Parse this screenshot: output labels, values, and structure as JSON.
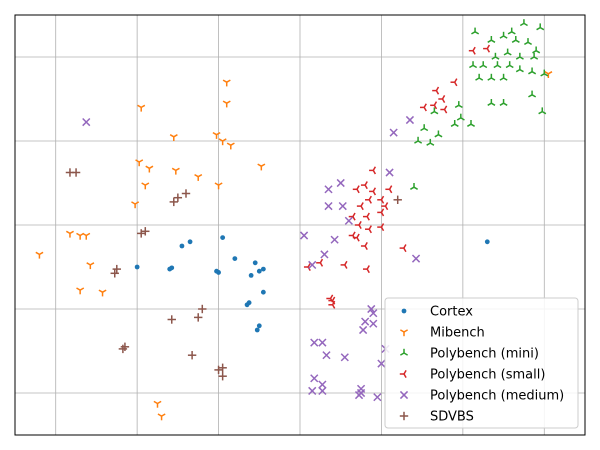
{
  "chart_data": {
    "type": "scatter",
    "title": "",
    "xlabel": "",
    "ylabel": "",
    "xlim": [
      0,
      14
    ],
    "ylim": [
      0,
      10
    ],
    "grid": true,
    "tick_labels_visible": false,
    "legend_position": "lower-right",
    "series": [
      {
        "name": "Cortex",
        "marker": "point",
        "color": "#1f77b4",
        "points": [
          [
            5.1,
            4.7
          ],
          [
            4.3,
            4.6
          ],
          [
            4.1,
            4.5
          ],
          [
            5.4,
            4.2
          ],
          [
            5.9,
            4.1
          ],
          [
            5.8,
            3.8
          ],
          [
            6.0,
            3.9
          ],
          [
            6.1,
            3.95
          ],
          [
            3.0,
            4.0
          ],
          [
            3.8,
            3.95
          ],
          [
            3.85,
            3.98
          ],
          [
            4.95,
            3.9
          ],
          [
            5.0,
            3.87
          ],
          [
            6.1,
            3.4
          ],
          [
            5.7,
            3.1
          ],
          [
            5.75,
            3.15
          ],
          [
            5.95,
            2.5
          ],
          [
            6.0,
            2.6
          ],
          [
            11.6,
            4.6
          ]
        ]
      },
      {
        "name": "Mibench",
        "marker": "tri_down",
        "color": "#ff7f0e",
        "points": [
          [
            5.2,
            8.4
          ],
          [
            5.2,
            7.9
          ],
          [
            3.1,
            7.8
          ],
          [
            3.9,
            7.1
          ],
          [
            4.95,
            7.15
          ],
          [
            5.1,
            7.0
          ],
          [
            5.3,
            6.9
          ],
          [
            3.05,
            6.5
          ],
          [
            3.3,
            6.35
          ],
          [
            3.95,
            6.3
          ],
          [
            4.5,
            6.15
          ],
          [
            6.05,
            6.4
          ],
          [
            3.2,
            5.95
          ],
          [
            5.0,
            5.95
          ],
          [
            2.95,
            5.5
          ],
          [
            1.35,
            4.8
          ],
          [
            1.6,
            4.75
          ],
          [
            1.75,
            4.75
          ],
          [
            0.6,
            4.3
          ],
          [
            1.85,
            4.05
          ],
          [
            1.6,
            3.45
          ],
          [
            2.15,
            3.4
          ],
          [
            3.5,
            0.75
          ],
          [
            3.6,
            0.45
          ],
          [
            13.1,
            8.6
          ]
        ]
      },
      {
        "name": "Polybench (mini)",
        "marker": "tri_up",
        "color": "#2ca02c",
        "points": [
          [
            11.3,
            9.6
          ],
          [
            11.7,
            9.4
          ],
          [
            12.0,
            9.5
          ],
          [
            12.2,
            9.6
          ],
          [
            12.5,
            9.8
          ],
          [
            12.9,
            9.7
          ],
          [
            12.3,
            9.4
          ],
          [
            12.6,
            9.35
          ],
          [
            12.8,
            9.15
          ],
          [
            12.1,
            9.1
          ],
          [
            11.8,
            9.0
          ],
          [
            12.4,
            9.0
          ],
          [
            12.75,
            9.0
          ],
          [
            11.25,
            8.8
          ],
          [
            11.5,
            8.8
          ],
          [
            11.85,
            8.8
          ],
          [
            12.15,
            8.8
          ],
          [
            12.4,
            8.7
          ],
          [
            12.7,
            8.65
          ],
          [
            13.0,
            8.6
          ],
          [
            11.4,
            8.5
          ],
          [
            11.7,
            8.5
          ],
          [
            12.0,
            8.5
          ],
          [
            11.7,
            7.9
          ],
          [
            12.0,
            7.9
          ],
          [
            10.9,
            7.85
          ],
          [
            10.3,
            7.7
          ],
          [
            10.95,
            7.55
          ],
          [
            11.2,
            7.4
          ],
          [
            10.8,
            7.4
          ],
          [
            10.05,
            7.3
          ],
          [
            10.4,
            7.15
          ],
          [
            9.9,
            7.0
          ],
          [
            10.2,
            6.95
          ],
          [
            9.8,
            5.9
          ],
          [
            12.7,
            8.1
          ],
          [
            12.95,
            7.7
          ]
        ]
      },
      {
        "name": "Polybench (small)",
        "marker": "tri_left",
        "color": "#d62728",
        "points": [
          [
            11.25,
            9.15
          ],
          [
            11.6,
            9.2
          ],
          [
            10.8,
            8.4
          ],
          [
            10.35,
            8.2
          ],
          [
            10.5,
            8.0
          ],
          [
            10.05,
            7.8
          ],
          [
            10.3,
            7.85
          ],
          [
            10.55,
            7.75
          ],
          [
            8.8,
            6.3
          ],
          [
            8.6,
            5.95
          ],
          [
            8.4,
            5.85
          ],
          [
            8.8,
            5.8
          ],
          [
            9.2,
            5.85
          ],
          [
            8.7,
            5.6
          ],
          [
            9.0,
            5.6
          ],
          [
            8.5,
            5.45
          ],
          [
            8.3,
            5.2
          ],
          [
            8.65,
            5.2
          ],
          [
            9.0,
            5.3
          ],
          [
            8.45,
            5.0
          ],
          [
            8.7,
            4.9
          ],
          [
            9.0,
            4.95
          ],
          [
            8.3,
            4.75
          ],
          [
            8.4,
            4.7
          ],
          [
            9.1,
            5.45
          ],
          [
            7.5,
            4.1
          ],
          [
            7.2,
            4.0
          ],
          [
            8.1,
            4.05
          ],
          [
            8.65,
            3.95
          ],
          [
            9.55,
            4.45
          ],
          [
            8.6,
            4.5
          ],
          [
            7.75,
            3.25
          ],
          [
            7.8,
            3.2
          ],
          [
            7.8,
            3.1
          ]
        ]
      },
      {
        "name": "Polybench (medium)",
        "marker": "x",
        "color": "#9467bd",
        "points": [
          [
            1.75,
            7.45
          ],
          [
            9.7,
            7.5
          ],
          [
            9.3,
            7.2
          ],
          [
            9.2,
            6.25
          ],
          [
            8.0,
            6.0
          ],
          [
            7.7,
            5.85
          ],
          [
            7.7,
            5.45
          ],
          [
            8.05,
            5.45
          ],
          [
            8.2,
            5.1
          ],
          [
            7.1,
            4.75
          ],
          [
            7.85,
            4.65
          ],
          [
            7.6,
            4.3
          ],
          [
            7.3,
            4.05
          ],
          [
            9.85,
            4.2
          ],
          [
            8.75,
            3.0
          ],
          [
            8.8,
            2.65
          ],
          [
            8.55,
            2.5
          ],
          [
            8.6,
            2.7
          ],
          [
            8.8,
            2.9
          ],
          [
            7.35,
            2.2
          ],
          [
            7.55,
            2.2
          ],
          [
            7.65,
            1.9
          ],
          [
            8.1,
            1.85
          ],
          [
            7.35,
            1.35
          ],
          [
            7.55,
            1.2
          ],
          [
            7.3,
            1.05
          ],
          [
            7.55,
            1.05
          ],
          [
            8.5,
            1.1
          ],
          [
            8.5,
            1.0
          ],
          [
            8.45,
            0.95
          ],
          [
            8.9,
            0.9
          ],
          [
            9.1,
            2.05
          ],
          [
            9.0,
            1.7
          ]
        ]
      },
      {
        "name": "SDVBS",
        "marker": "plus",
        "color": "#8c564b",
        "points": [
          [
            1.35,
            6.25
          ],
          [
            1.5,
            6.25
          ],
          [
            4.0,
            5.65
          ],
          [
            3.9,
            5.55
          ],
          [
            4.2,
            5.75
          ],
          [
            9.4,
            5.6
          ],
          [
            3.2,
            4.85
          ],
          [
            3.1,
            4.8
          ],
          [
            2.5,
            3.95
          ],
          [
            2.45,
            3.85
          ],
          [
            4.6,
            3.0
          ],
          [
            4.5,
            2.8
          ],
          [
            3.85,
            2.75
          ],
          [
            2.7,
            2.1
          ],
          [
            2.65,
            2.05
          ],
          [
            4.35,
            1.9
          ],
          [
            5.1,
            1.6
          ],
          [
            5.0,
            1.55
          ],
          [
            5.1,
            1.4
          ]
        ]
      }
    ]
  }
}
